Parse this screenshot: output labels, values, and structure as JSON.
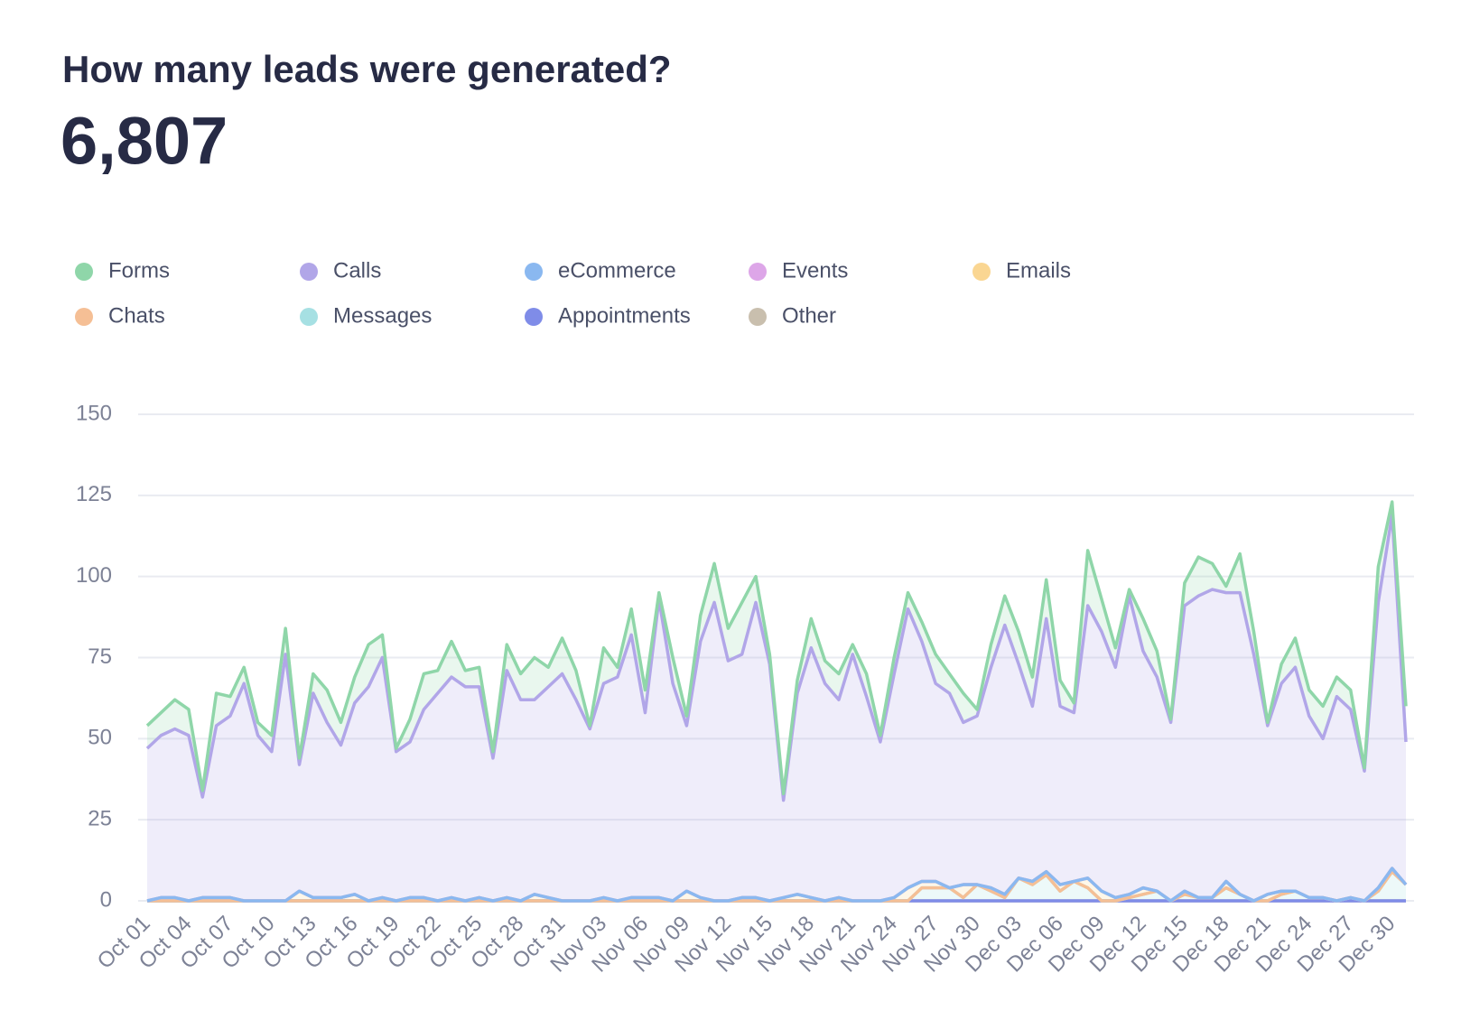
{
  "chart_data": {
    "type": "area",
    "stacked": true,
    "title": "How many leads were generated?",
    "subtitle": "6,807",
    "legend": "top-left",
    "grid": true,
    "area_opacity": 0.2,
    "ylim": [
      0,
      150
    ],
    "yticks": [
      0,
      25,
      50,
      75,
      100,
      125,
      150
    ],
    "categories": [
      "Oct 01",
      null,
      null,
      "Oct 04",
      null,
      null,
      "Oct 07",
      null,
      null,
      "Oct 10",
      null,
      null,
      "Oct 13",
      null,
      null,
      "Oct 16",
      null,
      null,
      "Oct 19",
      null,
      null,
      "Oct 22",
      null,
      null,
      "Oct 25",
      null,
      null,
      "Oct 28",
      null,
      null,
      "Oct 31",
      null,
      null,
      "Nov 03",
      null,
      null,
      "Nov 06",
      null,
      null,
      "Nov 09",
      null,
      null,
      "Nov 12",
      null,
      null,
      "Nov 15",
      null,
      null,
      "Nov 18",
      null,
      null,
      "Nov 21",
      null,
      null,
      "Nov 24",
      null,
      null,
      "Nov 27",
      null,
      null,
      "Nov 30",
      null,
      null,
      "Dec 03",
      null,
      null,
      "Dec 06",
      null,
      null,
      "Dec 09",
      null,
      null,
      "Dec 12",
      null,
      null,
      "Dec 15",
      null,
      null,
      "Dec 18",
      null,
      null,
      "Dec 21",
      null,
      null,
      "Dec 24",
      null,
      null,
      "Dec 27",
      null,
      null,
      "Dec 30",
      null
    ],
    "series": [
      {
        "name": "Forms",
        "color": "#8fd6a9",
        "values": [
          7,
          7,
          9,
          8,
          2,
          10,
          6,
          5,
          4,
          5,
          8,
          2,
          6,
          10,
          7,
          8,
          13,
          7,
          1,
          7,
          11,
          7,
          11,
          5,
          6,
          2,
          8,
          8,
          13,
          6,
          11,
          9,
          1,
          11,
          3,
          8,
          7,
          2,
          8,
          3,
          8,
          12,
          10,
          16,
          8,
          3,
          2,
          4,
          9,
          7,
          8,
          3,
          7,
          2,
          5,
          5,
          6,
          9,
          6,
          9,
          2,
          7,
          9,
          10,
          9,
          12,
          8,
          3,
          17,
          10,
          6,
          2,
          10,
          8,
          1,
          7,
          12,
          8,
          2,
          12,
          7,
          1,
          6,
          9,
          8,
          10,
          6,
          6,
          1,
          11,
          4,
          11
        ]
      },
      {
        "name": "Calls",
        "color": "#b1a6e8",
        "values": [
          47,
          50,
          52,
          51,
          31,
          53,
          56,
          67,
          51,
          46,
          76,
          39,
          63,
          54,
          47,
          59,
          66,
          74,
          46,
          48,
          58,
          64,
          68,
          66,
          65,
          44,
          70,
          62,
          60,
          65,
          70,
          62,
          53,
          66,
          69,
          81,
          57,
          92,
          67,
          51,
          79,
          92,
          74,
          75,
          91,
          73,
          30,
          62,
          77,
          67,
          61,
          76,
          63,
          49,
          69,
          86,
          74,
          61,
          60,
          50,
          52,
          68,
          83,
          66,
          54,
          78,
          55,
          52,
          84,
          80,
          71,
          92,
          73,
          66,
          55,
          88,
          93,
          95,
          89,
          93,
          76,
          52,
          64,
          69,
          56,
          49,
          63,
          58,
          40,
          88,
          109,
          44
        ]
      },
      {
        "name": "eCommerce",
        "color": "#8ab8f0",
        "values": [
          0,
          0,
          0,
          0,
          0,
          0,
          0,
          0,
          0,
          0,
          0,
          0,
          0,
          0,
          0,
          0,
          0,
          0,
          0,
          0,
          0,
          0,
          0,
          0,
          0,
          0,
          0,
          0,
          0,
          0,
          0,
          0,
          0,
          0,
          0,
          0,
          0,
          0,
          0,
          0,
          0,
          0,
          0,
          0,
          0,
          0,
          0,
          0,
          0,
          0,
          0,
          0,
          0,
          0,
          0,
          0,
          0,
          0,
          0,
          0,
          0,
          0,
          0,
          0,
          0,
          0,
          0,
          0,
          0,
          0,
          0,
          0,
          0,
          0,
          0,
          0,
          0,
          0,
          0,
          0,
          0,
          0,
          0,
          0,
          0,
          0,
          0,
          0,
          0,
          0,
          0,
          0
        ]
      },
      {
        "name": "Events",
        "color": "#dda6e8",
        "values": [
          0,
          0,
          0,
          0,
          0,
          0,
          0,
          0,
          0,
          0,
          0,
          0,
          0,
          0,
          0,
          0,
          0,
          0,
          0,
          0,
          0,
          0,
          0,
          0,
          0,
          0,
          0,
          0,
          0,
          0,
          0,
          0,
          0,
          0,
          0,
          0,
          0,
          0,
          0,
          0,
          0,
          0,
          0,
          0,
          0,
          0,
          0,
          0,
          0,
          0,
          0,
          0,
          0,
          0,
          0,
          0,
          0,
          0,
          0,
          0,
          0,
          0,
          0,
          0,
          0,
          0,
          0,
          0,
          0,
          0,
          0,
          0,
          0,
          0,
          0,
          0,
          0,
          0,
          0,
          0,
          0,
          0,
          0,
          0,
          0,
          0,
          0,
          0,
          0,
          0,
          0,
          0
        ]
      },
      {
        "name": "Emails",
        "color": "#fad692",
        "values": [
          0,
          1,
          1,
          0,
          1,
          1,
          1,
          0,
          0,
          0,
          0,
          3,
          1,
          1,
          1,
          2,
          0,
          1,
          0,
          1,
          1,
          0,
          1,
          0,
          1,
          0,
          1,
          0,
          2,
          1,
          0,
          0,
          0,
          1,
          0,
          1,
          1,
          1,
          0,
          3,
          1,
          0,
          0,
          1,
          1,
          0,
          1,
          2,
          1,
          0,
          1,
          0,
          0,
          0,
          1,
          4,
          2,
          2,
          0,
          4,
          0,
          1,
          1,
          0,
          1,
          1,
          2,
          0,
          3,
          3,
          1,
          1,
          2,
          0,
          0,
          1,
          0,
          0,
          2,
          0,
          0,
          2,
          1,
          0,
          0,
          0,
          0,
          0,
          0,
          1,
          1,
          0
        ]
      },
      {
        "name": "Chats",
        "color": "#f5bf95",
        "values": [
          0,
          0,
          0,
          0,
          0,
          0,
          0,
          0,
          0,
          0,
          0,
          0,
          0,
          0,
          0,
          0,
          0,
          0,
          0,
          0,
          0,
          0,
          0,
          0,
          0,
          0,
          0,
          0,
          0,
          0,
          0,
          0,
          0,
          0,
          0,
          0,
          0,
          0,
          0,
          0,
          0,
          0,
          0,
          0,
          0,
          0,
          0,
          0,
          0,
          0,
          0,
          0,
          0,
          0,
          0,
          0,
          0,
          0,
          0,
          0,
          0,
          0,
          0,
          0,
          0,
          0,
          0,
          0,
          0,
          0,
          0,
          0,
          0,
          0,
          0,
          0,
          0,
          0,
          0,
          0,
          0,
          0,
          0,
          0,
          0,
          0,
          0,
          0,
          0,
          0,
          0,
          0
        ]
      },
      {
        "name": "Messages",
        "color": "#a6e0e3",
        "values": [
          0,
          0,
          0,
          0,
          0,
          0,
          0,
          0,
          0,
          0,
          0,
          0,
          0,
          0,
          0,
          0,
          0,
          0,
          0,
          0,
          0,
          0,
          0,
          0,
          0,
          0,
          0,
          0,
          0,
          0,
          0,
          0,
          0,
          0,
          0,
          0,
          0,
          0,
          0,
          0,
          0,
          0,
          0,
          0,
          0,
          0,
          0,
          0,
          0,
          0,
          0,
          0,
          0,
          0,
          0,
          0,
          4,
          4,
          4,
          1,
          5,
          3,
          1,
          7,
          5,
          8,
          3,
          6,
          4,
          0,
          0,
          1,
          2,
          3,
          0,
          2,
          1,
          1,
          4,
          2,
          0,
          0,
          2,
          3,
          1,
          1,
          0,
          1,
          0,
          3,
          9,
          5
        ]
      },
      {
        "name": "Appointments",
        "color": "#7f8ce8",
        "values": [
          0,
          0,
          0,
          0,
          0,
          0,
          0,
          0,
          0,
          0,
          0,
          0,
          0,
          0,
          0,
          0,
          0,
          0,
          0,
          0,
          0,
          0,
          0,
          0,
          0,
          0,
          0,
          0,
          0,
          0,
          0,
          0,
          0,
          0,
          0,
          0,
          0,
          0,
          0,
          0,
          0,
          0,
          0,
          0,
          0,
          0,
          0,
          0,
          0,
          0,
          0,
          0,
          0,
          0,
          0,
          0,
          0,
          0,
          0,
          0,
          0,
          0,
          0,
          0,
          0,
          0,
          0,
          0,
          0,
          0,
          0,
          0,
          0,
          0,
          0,
          0,
          0,
          0,
          0,
          0,
          0,
          0,
          0,
          0,
          0,
          0,
          0,
          0,
          0,
          0,
          0,
          0
        ]
      },
      {
        "name": "Other",
        "color": "#c9bfae",
        "values": [
          0,
          0,
          0,
          0,
          0,
          0,
          0,
          0,
          0,
          0,
          0,
          0,
          0,
          0,
          0,
          0,
          0,
          0,
          0,
          0,
          0,
          0,
          0,
          0,
          0,
          0,
          0,
          0,
          0,
          0,
          0,
          0,
          0,
          0,
          0,
          0,
          0,
          0,
          0,
          0,
          0,
          0,
          0,
          0,
          0,
          0,
          0,
          0,
          0,
          0,
          0,
          0,
          0,
          0,
          0,
          0,
          0,
          0,
          0,
          0,
          0,
          0,
          0,
          0,
          0,
          0,
          0,
          0,
          0,
          0,
          0,
          0,
          0,
          0,
          0,
          0,
          0,
          0,
          0,
          0,
          0,
          0,
          0,
          0,
          0,
          0,
          0,
          0,
          0,
          0,
          0,
          0
        ]
      }
    ]
  }
}
